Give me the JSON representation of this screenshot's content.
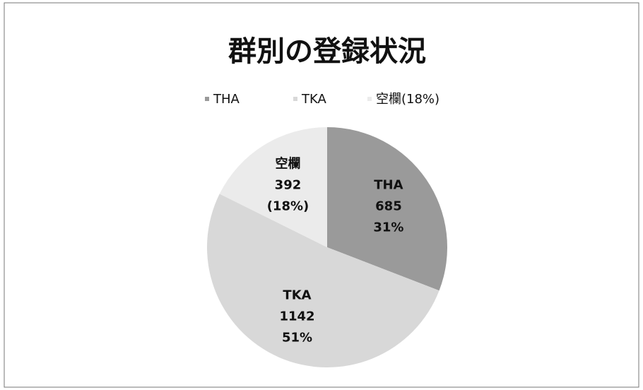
{
  "chart_data": {
    "type": "pie",
    "title": "群別の登録状況",
    "legend": [
      "THA",
      "TKA",
      "空欄(18%)"
    ],
    "categories": [
      "THA",
      "TKA",
      "空欄"
    ],
    "values": [
      685,
      1142,
      392
    ],
    "percent_labels": [
      "31%",
      "51%",
      "(18%)"
    ],
    "colors": [
      "#9a9a9a",
      "#d8d8d8",
      "#ebebeb"
    ],
    "legend_position": "top"
  }
}
